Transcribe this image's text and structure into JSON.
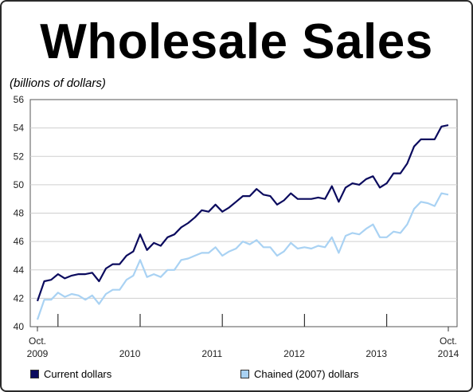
{
  "chart_data": {
    "type": "line",
    "title": "Wholesale Sales",
    "ylabel": "(billions of dollars)",
    "xlabel": "",
    "ylim": [
      40,
      56
    ],
    "yticks": [
      40,
      42,
      44,
      46,
      48,
      50,
      52,
      54,
      56
    ],
    "x_tick_labels": [
      {
        "label": "Oct.",
        "label2": "2009",
        "month_index": 0
      },
      {
        "label": "2010",
        "label2": "",
        "month_index": 8
      },
      {
        "label": "2011",
        "label2": "",
        "month_index": 20
      },
      {
        "label": "2012",
        "label2": "",
        "month_index": 32
      },
      {
        "label": "2013",
        "label2": "",
        "month_index": 44
      },
      {
        "label": "Oct.",
        "label2": "2014",
        "month_index": 60
      }
    ],
    "x_start": "2009-10",
    "x_end": "2014-10",
    "grid": "horizontal",
    "legend_position": "bottom",
    "series": [
      {
        "name": "Current dollars",
        "color": "#0b0b5e",
        "values": [
          41.8,
          43.2,
          43.3,
          43.7,
          43.4,
          43.6,
          43.7,
          43.7,
          43.8,
          43.2,
          44.1,
          44.4,
          44.4,
          45.0,
          45.3,
          46.5,
          45.4,
          45.9,
          45.7,
          46.3,
          46.5,
          47.0,
          47.3,
          47.7,
          48.2,
          48.1,
          48.6,
          48.1,
          48.4,
          48.8,
          49.2,
          49.2,
          49.7,
          49.3,
          49.2,
          48.6,
          48.9,
          49.4,
          49.0,
          49.0,
          49.0,
          49.1,
          49.0,
          49.9,
          48.8,
          49.8,
          50.1,
          50.0,
          50.4,
          50.6,
          49.8,
          50.1,
          50.8,
          50.8,
          51.5,
          52.7,
          53.2,
          53.2,
          53.2,
          54.1,
          54.2
        ],
        "dates": [
          "2009-10",
          "2009-11",
          "2009-12",
          "2010-01",
          "2010-02",
          "2010-03",
          "2010-04",
          "2010-05",
          "2010-06",
          "2010-07",
          "2010-08",
          "2010-09",
          "2010-10",
          "2010-11",
          "2010-12",
          "2011-01",
          "2011-02",
          "2011-03",
          "2011-04",
          "2011-05",
          "2011-06",
          "2011-07",
          "2011-08",
          "2011-09",
          "2011-10",
          "2011-11",
          "2011-12",
          "2012-01",
          "2012-02",
          "2012-03",
          "2012-04",
          "2012-05",
          "2012-06",
          "2012-07",
          "2012-08",
          "2012-09",
          "2012-10",
          "2012-11",
          "2012-12",
          "2013-01",
          "2013-02",
          "2013-03",
          "2013-04",
          "2013-05",
          "2013-06",
          "2013-07",
          "2013-08",
          "2013-09",
          "2013-10",
          "2013-11",
          "2013-12",
          "2014-01",
          "2014-02",
          "2014-03",
          "2014-04",
          "2014-05",
          "2014-06",
          "2014-07",
          "2014-08",
          "2014-09",
          "2014-10"
        ]
      },
      {
        "name": "Chained (2007) dollars",
        "color": "#a9d2f3",
        "values": [
          40.5,
          41.9,
          41.9,
          42.4,
          42.1,
          42.3,
          42.2,
          41.9,
          42.2,
          41.6,
          42.3,
          42.6,
          42.6,
          43.3,
          43.6,
          44.7,
          43.5,
          43.7,
          43.5,
          44.0,
          44.0,
          44.7,
          44.8,
          45.0,
          45.2,
          45.2,
          45.6,
          45.0,
          45.3,
          45.5,
          46.0,
          45.8,
          46.1,
          45.6,
          45.6,
          45.0,
          45.3,
          45.9,
          45.5,
          45.6,
          45.5,
          45.7,
          45.6,
          46.3,
          45.2,
          46.4,
          46.6,
          46.5,
          46.9,
          47.2,
          46.3,
          46.3,
          46.7,
          46.6,
          47.2,
          48.3,
          48.8,
          48.7,
          48.5,
          49.4,
          49.3
        ],
        "dates": [
          "2009-10",
          "2009-11",
          "2009-12",
          "2010-01",
          "2010-02",
          "2010-03",
          "2010-04",
          "2010-05",
          "2010-06",
          "2010-07",
          "2010-08",
          "2010-09",
          "2010-10",
          "2010-11",
          "2010-12",
          "2011-01",
          "2011-02",
          "2011-03",
          "2011-04",
          "2011-05",
          "2011-06",
          "2011-07",
          "2011-08",
          "2011-09",
          "2011-10",
          "2011-11",
          "2011-12",
          "2012-01",
          "2012-02",
          "2012-03",
          "2012-04",
          "2012-05",
          "2012-06",
          "2012-07",
          "2012-08",
          "2012-09",
          "2012-10",
          "2012-11",
          "2012-12",
          "2013-01",
          "2013-02",
          "2013-03",
          "2013-04",
          "2013-05",
          "2013-06",
          "2013-07",
          "2013-08",
          "2013-09",
          "2013-10",
          "2013-11",
          "2013-12",
          "2014-01",
          "2014-02",
          "2014-03",
          "2014-04",
          "2014-05",
          "2014-06",
          "2014-07",
          "2014-08",
          "2014-09",
          "2014-10"
        ]
      }
    ]
  },
  "legend": {
    "items": [
      {
        "label": "Current dollars",
        "color": "#0b0b5e"
      },
      {
        "label": "Chained (2007) dollars",
        "color": "#a9d2f3"
      }
    ]
  }
}
